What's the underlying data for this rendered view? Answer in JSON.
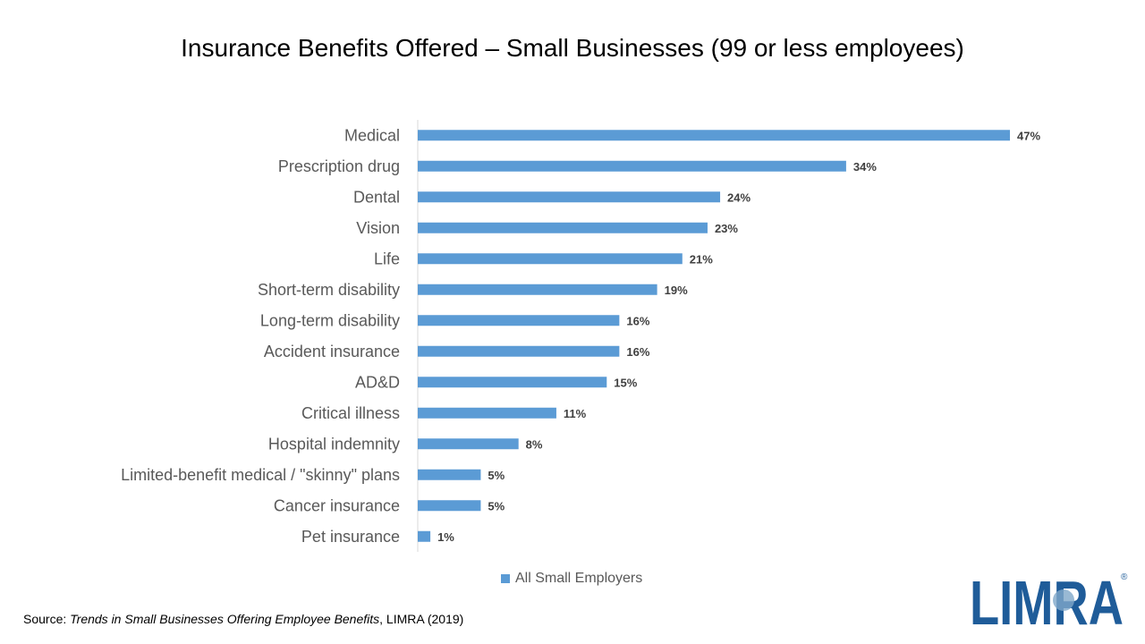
{
  "colors": {
    "bar": "#5B9BD5",
    "axis": "#D9D9D9",
    "label": "#404040",
    "logo": "#1F5C99"
  },
  "chart_data": {
    "type": "bar",
    "orientation": "horizontal",
    "title": "Insurance Benefits Offered – Small Businesses (99 or less employees)",
    "xlabel": "",
    "ylabel": "",
    "xlim": [
      0,
      47
    ],
    "grid": false,
    "legend_position": "bottom",
    "categories": [
      "Medical",
      "Prescription drug",
      "Dental",
      "Vision",
      "Life",
      "Short-term disability",
      "Long-term disability",
      "Accident insurance",
      "AD&D",
      "Critical illness",
      "Hospital indemnity",
      "Limited-benefit medical / \"skinny\" plans",
      "Cancer insurance",
      "Pet insurance"
    ],
    "series": [
      {
        "name": "All Small Employers",
        "values": [
          47,
          34,
          24,
          23,
          21,
          19,
          16,
          16,
          15,
          11,
          8,
          5,
          5,
          1
        ],
        "labels": [
          "47%",
          "34%",
          "24%",
          "23%",
          "21%",
          "19%",
          "16%",
          "16%",
          "15%",
          "11%",
          "8%",
          "5%",
          "5%",
          "1%"
        ]
      }
    ]
  },
  "source": {
    "prefix": "Source:",
    "publication": "Trends in Small Businesses Offering Employee Benefits",
    "suffix": ", LIMRA (2019)"
  },
  "logo": {
    "text": "LIMRA",
    "mark": "®"
  }
}
